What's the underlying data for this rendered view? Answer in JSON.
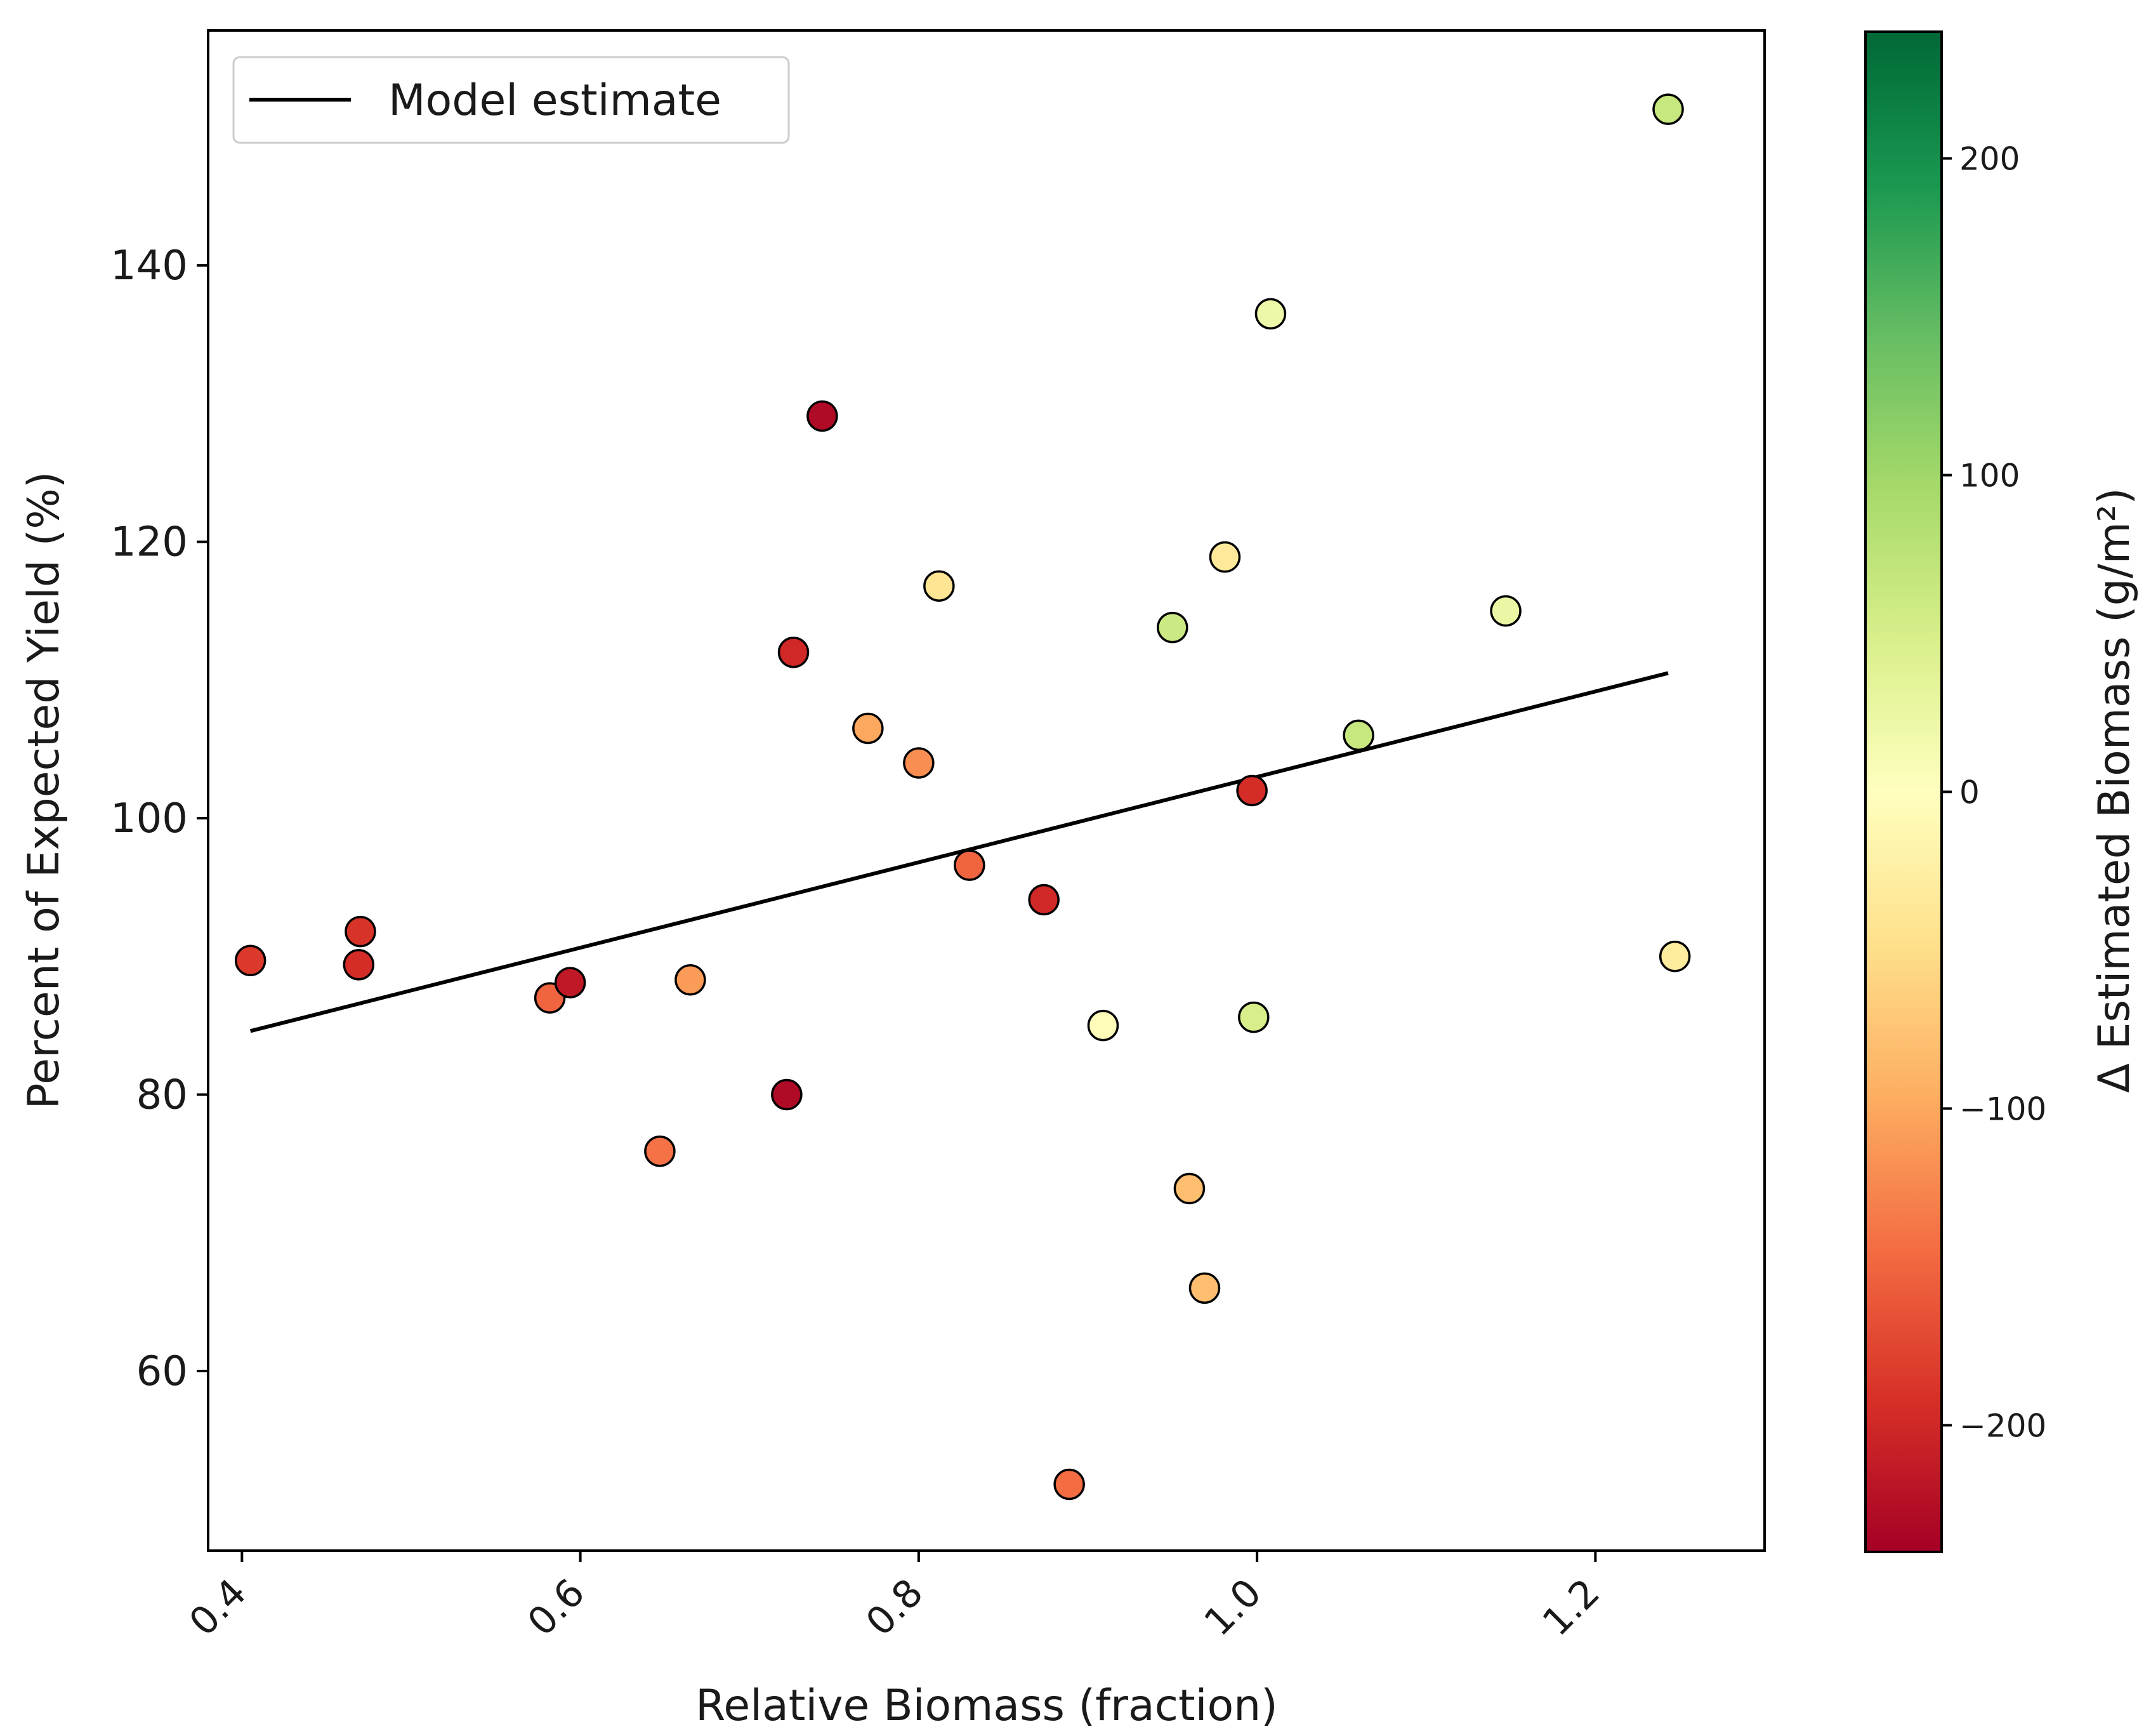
{
  "chart_data": {
    "type": "scatter",
    "title": "",
    "xlabel": "Relative Biomass (fraction)",
    "ylabel": "Percent of Expected Yield (%)",
    "xlim": [
      0.38,
      1.3
    ],
    "ylim": [
      47,
      157
    ],
    "xticks": [
      0.4,
      0.6,
      0.8,
      1.0,
      1.2
    ],
    "xtick_labels": [
      "0.4",
      "0.6",
      "0.8",
      "1.0",
      "1.2"
    ],
    "yticks": [
      60,
      80,
      100,
      120,
      140
    ],
    "ytick_labels": [
      "60",
      "80",
      "100",
      "120",
      "140"
    ],
    "grid": false,
    "legend": {
      "position": "upper-left",
      "entries": [
        "Model estimate"
      ]
    },
    "model_line": {
      "name": "Model estimate",
      "x": [
        0.405,
        1.243
      ],
      "y": [
        84.6,
        110.5
      ],
      "color": "#000000"
    },
    "colorbar": {
      "label": "Δ Estimated Biomass (g/m²)",
      "range": [
        -240,
        240
      ],
      "ticks": [
        -200,
        -100,
        0,
        100,
        200
      ],
      "tick_labels": [
        "−200",
        "−100",
        "0",
        "100",
        "200"
      ],
      "colormap": "RdYlGn",
      "stops": [
        "#a50026",
        "#d73027",
        "#f46d43",
        "#fdae61",
        "#fee08b",
        "#ffffbf",
        "#d9ef8b",
        "#a6d96a",
        "#66bd63",
        "#1a9850",
        "#006837"
      ]
    },
    "points": [
      {
        "x": 0.405,
        "y": 89.7,
        "c": -185
      },
      {
        "x": 0.47,
        "y": 91.8,
        "c": -190
      },
      {
        "x": 0.469,
        "y": 89.4,
        "c": -195
      },
      {
        "x": 0.582,
        "y": 87.0,
        "c": -150
      },
      {
        "x": 0.594,
        "y": 88.1,
        "c": -215
      },
      {
        "x": 0.647,
        "y": 75.9,
        "c": -140
      },
      {
        "x": 0.665,
        "y": 88.3,
        "c": -110
      },
      {
        "x": 0.722,
        "y": 80.0,
        "c": -230
      },
      {
        "x": 0.726,
        "y": 112.0,
        "c": -200
      },
      {
        "x": 0.743,
        "y": 129.1,
        "c": -230
      },
      {
        "x": 0.77,
        "y": 106.5,
        "c": -100
      },
      {
        "x": 0.8,
        "y": 104.0,
        "c": -120
      },
      {
        "x": 0.812,
        "y": 116.8,
        "c": -40
      },
      {
        "x": 0.83,
        "y": 96.6,
        "c": -150
      },
      {
        "x": 0.874,
        "y": 94.1,
        "c": -200
      },
      {
        "x": 0.889,
        "y": 51.8,
        "c": -145
      },
      {
        "x": 0.909,
        "y": 85.0,
        "c": -5
      },
      {
        "x": 0.95,
        "y": 113.8,
        "c": 60
      },
      {
        "x": 0.96,
        "y": 73.2,
        "c": -80
      },
      {
        "x": 0.969,
        "y": 66.0,
        "c": -80
      },
      {
        "x": 0.981,
        "y": 118.9,
        "c": -35
      },
      {
        "x": 0.997,
        "y": 102.0,
        "c": -195
      },
      {
        "x": 0.998,
        "y": 85.6,
        "c": 50
      },
      {
        "x": 1.008,
        "y": 136.5,
        "c": 20
      },
      {
        "x": 1.06,
        "y": 106.0,
        "c": 65
      },
      {
        "x": 1.147,
        "y": 115.0,
        "c": 25
      },
      {
        "x": 1.243,
        "y": 151.3,
        "c": 65
      },
      {
        "x": 1.247,
        "y": 90.0,
        "c": -30
      }
    ]
  }
}
